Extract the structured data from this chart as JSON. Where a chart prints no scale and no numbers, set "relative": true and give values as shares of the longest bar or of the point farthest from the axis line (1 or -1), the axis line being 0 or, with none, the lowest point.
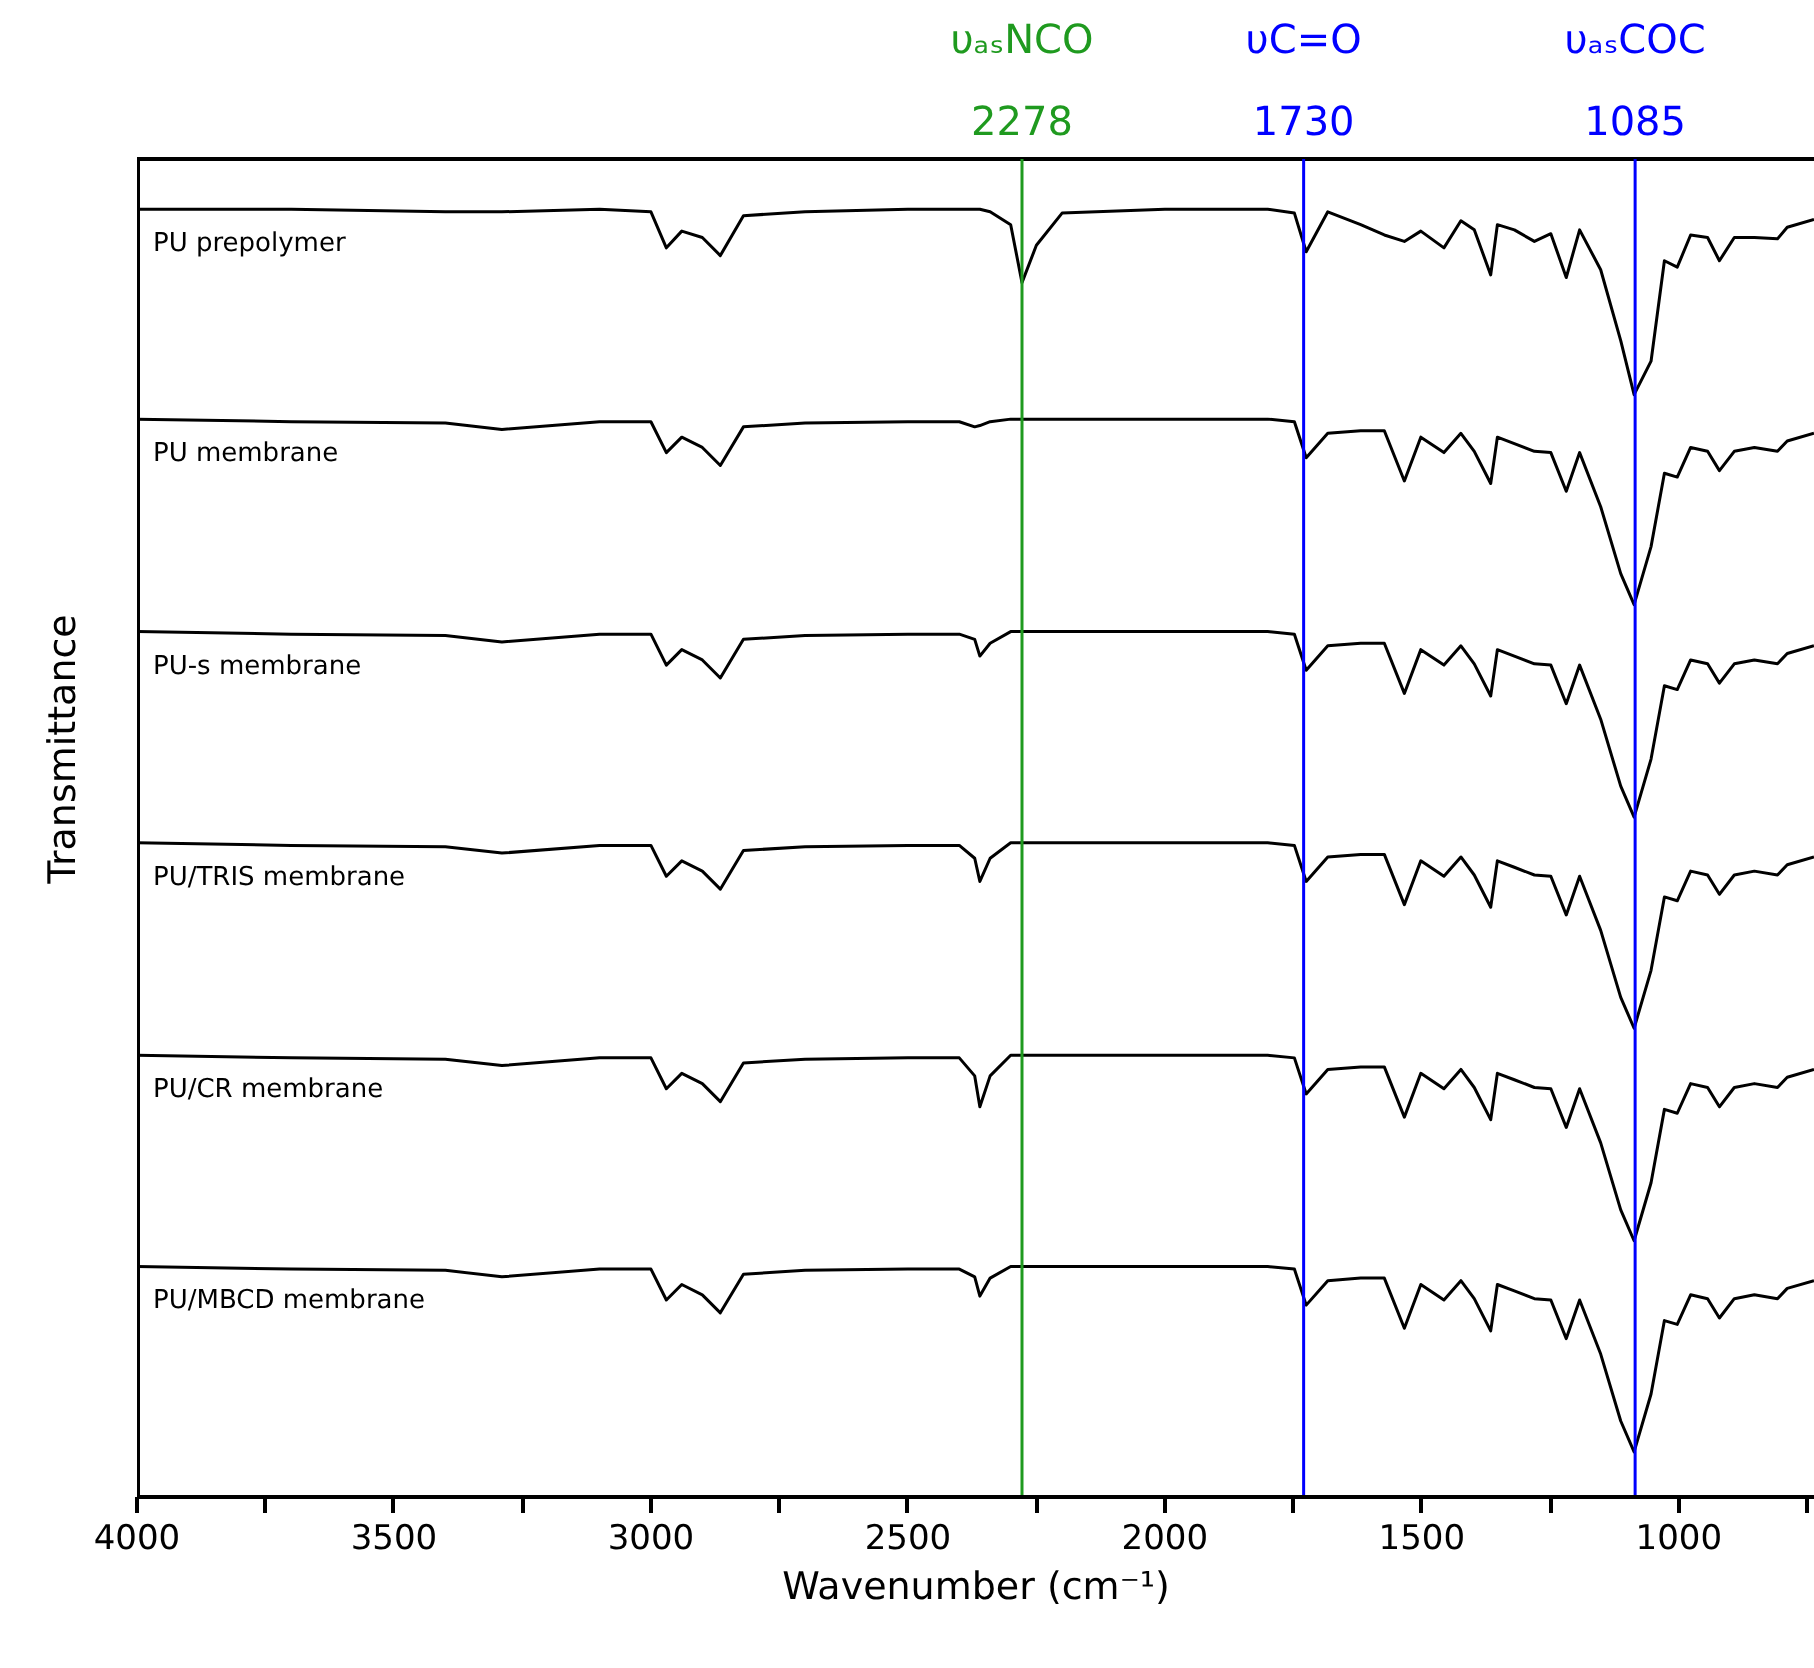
{
  "chart_data": {
    "type": "line",
    "relative": true,
    "xlabel": "Wavenumber (cm⁻¹)",
    "ylabel": "Transmittance",
    "xlim": [
      4000,
      735
    ],
    "xticks": [
      4000,
      {
        "value": 3750,
        "label": null
      },
      3500,
      {
        "value": 3250,
        "label": null
      },
      3000,
      {
        "value": 2750,
        "label": null
      },
      2500,
      {
        "value": 2250,
        "label": null
      },
      2000,
      {
        "value": 1750,
        "label": null
      },
      1500,
      {
        "value": 1250,
        "label": null
      },
      1000,
      {
        "value": 750,
        "label": null
      }
    ],
    "tick_labels": "x",
    "grid": false,
    "marker": "none",
    "line_style": "solid",
    "x": [
      4000,
      3700,
      3400,
      3290,
      3100,
      3000,
      2970,
      2940,
      2900,
      2865,
      2820,
      2700,
      2500,
      2400,
      2370,
      2360,
      2340,
      2300,
      2278,
      2250,
      2200,
      2000,
      1800,
      1748,
      1725,
      1683,
      1619,
      1573,
      1534,
      1502,
      1457,
      1424,
      1398,
      1366,
      1353,
      1320,
      1281,
      1249,
      1219,
      1193,
      1152,
      1113,
      1087,
      1054,
      1028,
      1003,
      977,
      944,
      921,
      892,
      853,
      808,
      789,
      737
    ],
    "series": [
      {
        "name": "PU prepolymer",
        "color": "#000000",
        "values": [
          1,
          1,
          0.998,
          0.998,
          1,
          0.998,
          0.97,
          0.983,
          0.978,
          0.964,
          0.995,
          0.998,
          1,
          1,
          1,
          1,
          0.998,
          0.988,
          0.943,
          0.972,
          0.997,
          1,
          1,
          0.997,
          0.967,
          0.998,
          0.988,
          0.98,
          0.975,
          0.983,
          0.97,
          0.991,
          0.984,
          0.949,
          0.988,
          0.984,
          0.975,
          0.981,
          0.947,
          0.984,
          0.953,
          0.898,
          0.856,
          0.882,
          0.96,
          0.955,
          0.98,
          0.978,
          0.96,
          0.978,
          0.978,
          0.977,
          0.986,
          0.992
        ]
      },
      {
        "name": "PU membrane",
        "color": "#000000",
        "values": [
          0.837,
          0.835,
          0.834,
          0.829,
          0.835,
          0.835,
          0.811,
          0.823,
          0.815,
          0.801,
          0.831,
          0.834,
          0.835,
          0.835,
          0.831,
          0.832,
          0.835,
          0.837,
          0.837,
          0.837,
          0.837,
          0.837,
          0.837,
          0.835,
          0.807,
          0.826,
          0.828,
          0.828,
          0.789,
          0.823,
          0.811,
          0.826,
          0.812,
          0.787,
          0.823,
          0.818,
          0.812,
          0.811,
          0.781,
          0.811,
          0.769,
          0.717,
          0.693,
          0.738,
          0.795,
          0.792,
          0.815,
          0.812,
          0.797,
          0.812,
          0.815,
          0.812,
          0.82,
          0.826
        ]
      },
      {
        "name": "PU-s membrane",
        "color": "#000000",
        "values": [
          0.672,
          0.67,
          0.669,
          0.664,
          0.67,
          0.67,
          0.646,
          0.658,
          0.65,
          0.636,
          0.666,
          0.669,
          0.67,
          0.67,
          0.666,
          0.653,
          0.663,
          0.672,
          0.672,
          0.672,
          0.672,
          0.672,
          0.672,
          0.67,
          0.642,
          0.661,
          0.663,
          0.663,
          0.624,
          0.658,
          0.646,
          0.661,
          0.647,
          0.622,
          0.658,
          0.653,
          0.647,
          0.646,
          0.616,
          0.646,
          0.604,
          0.552,
          0.528,
          0.573,
          0.63,
          0.627,
          0.65,
          0.647,
          0.632,
          0.647,
          0.65,
          0.647,
          0.655,
          0.661
        ]
      },
      {
        "name": "PU/TRIS membrane",
        "color": "#000000",
        "values": [
          0.508,
          0.506,
          0.505,
          0.5,
          0.506,
          0.506,
          0.482,
          0.494,
          0.486,
          0.472,
          0.502,
          0.505,
          0.506,
          0.506,
          0.496,
          0.478,
          0.496,
          0.508,
          0.508,
          0.508,
          0.508,
          0.508,
          0.508,
          0.506,
          0.478,
          0.497,
          0.499,
          0.499,
          0.46,
          0.494,
          0.482,
          0.497,
          0.483,
          0.458,
          0.494,
          0.489,
          0.483,
          0.482,
          0.452,
          0.482,
          0.44,
          0.388,
          0.364,
          0.409,
          0.466,
          0.463,
          0.486,
          0.483,
          0.468,
          0.483,
          0.486,
          0.483,
          0.491,
          0.497
        ]
      },
      {
        "name": "PU/CR membrane",
        "color": "#000000",
        "values": [
          0.343,
          0.341,
          0.34,
          0.335,
          0.341,
          0.341,
          0.317,
          0.329,
          0.321,
          0.307,
          0.337,
          0.34,
          0.341,
          0.341,
          0.327,
          0.303,
          0.327,
          0.343,
          0.343,
          0.343,
          0.343,
          0.343,
          0.343,
          0.341,
          0.313,
          0.332,
          0.334,
          0.334,
          0.295,
          0.329,
          0.317,
          0.332,
          0.318,
          0.293,
          0.329,
          0.324,
          0.318,
          0.317,
          0.287,
          0.317,
          0.275,
          0.223,
          0.199,
          0.244,
          0.301,
          0.298,
          0.321,
          0.318,
          0.303,
          0.318,
          0.321,
          0.318,
          0.326,
          0.332
        ]
      },
      {
        "name": "PU/MBCD membrane",
        "color": "#000000",
        "values": [
          0.179,
          0.177,
          0.176,
          0.171,
          0.177,
          0.177,
          0.153,
          0.165,
          0.157,
          0.143,
          0.173,
          0.176,
          0.177,
          0.177,
          0.171,
          0.156,
          0.17,
          0.179,
          0.179,
          0.179,
          0.179,
          0.179,
          0.179,
          0.177,
          0.149,
          0.168,
          0.17,
          0.17,
          0.131,
          0.165,
          0.153,
          0.168,
          0.154,
          0.129,
          0.165,
          0.16,
          0.154,
          0.153,
          0.123,
          0.153,
          0.111,
          0.059,
          0.035,
          0.08,
          0.137,
          0.134,
          0.157,
          0.154,
          0.139,
          0.154,
          0.157,
          0.154,
          0.162,
          0.168
        ]
      }
    ],
    "ref_lines": [
      {
        "axis": "x",
        "value": 2278,
        "label": "υₐₛNCO\n2278",
        "color": "#1f9a1f",
        "line_style": "solid"
      },
      {
        "axis": "x",
        "value": 1730,
        "label": "υC=O\n1730",
        "color": "#0000ff",
        "line_style": "solid"
      },
      {
        "axis": "x",
        "value": 1085,
        "label": "υₐₛCOC\n1085",
        "color": "#0000ff",
        "line_style": "solid"
      }
    ]
  }
}
